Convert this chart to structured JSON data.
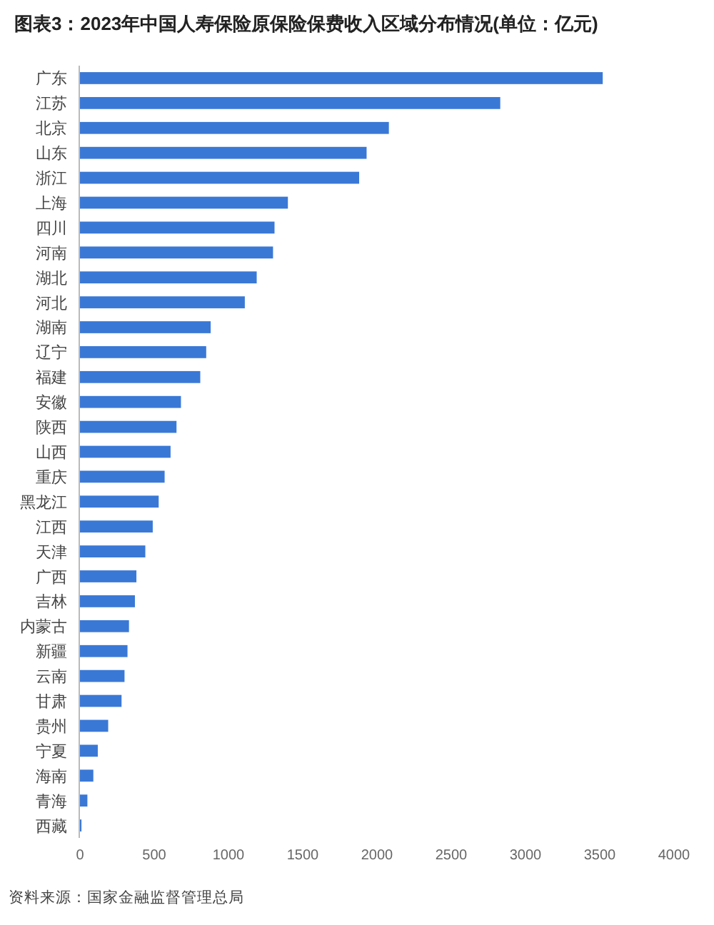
{
  "chart_data": {
    "type": "bar",
    "orientation": "horizontal",
    "title": "图表3：2023年中国人寿保险原保险保费收入区域分布情况(单位：亿元)",
    "categories": [
      "广东",
      "江苏",
      "北京",
      "山东",
      "浙江",
      "上海",
      "四川",
      "河南",
      "湖北",
      "河北",
      "湖南",
      "辽宁",
      "福建",
      "安徽",
      "陕西",
      "山西",
      "重庆",
      "黑龙江",
      "江西",
      "天津",
      "广西",
      "吉林",
      "内蒙古",
      "新疆",
      "云南",
      "甘肃",
      "贵州",
      "宁夏",
      "海南",
      "青海",
      "西藏"
    ],
    "values": [
      3520,
      2830,
      2080,
      1930,
      1880,
      1400,
      1310,
      1300,
      1190,
      1110,
      880,
      850,
      810,
      680,
      650,
      610,
      570,
      530,
      490,
      440,
      380,
      370,
      330,
      320,
      300,
      280,
      190,
      120,
      90,
      50,
      10
    ],
    "color": "#3a78d6",
    "xlim": [
      0,
      4000
    ],
    "xticks": [
      0,
      500,
      1000,
      1500,
      2000,
      2500,
      3000,
      3500,
      4000
    ],
    "grid": false,
    "annotations": [
      "资料来源：国家金融监督管理总局"
    ]
  }
}
